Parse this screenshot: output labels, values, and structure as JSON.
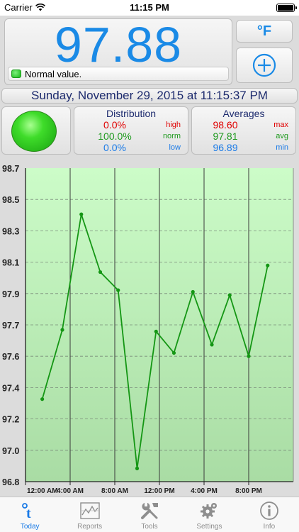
{
  "status_bar": {
    "carrier": "Carrier",
    "time": "11:15 PM"
  },
  "reading": {
    "value": "97.88",
    "status_text": "Normal value.",
    "unit_button": "°F"
  },
  "date_time": "Sunday, November 29, 2015 at 11:15:37 PM",
  "distribution": {
    "title": "Distribution",
    "rows": [
      {
        "value": "0.0%",
        "label": "high",
        "color": "#e00000"
      },
      {
        "value": "100.0%",
        "label": "norm",
        "color": "#1f9a1f"
      },
      {
        "value": "0.0%",
        "label": "low",
        "color": "#1a7ae6"
      }
    ]
  },
  "averages": {
    "title": "Averages",
    "rows": [
      {
        "value": "98.60",
        "label": "max",
        "color": "#e00000"
      },
      {
        "value": "97.81",
        "label": "avg",
        "color": "#1f9a1f"
      },
      {
        "value": "96.89",
        "label": "min",
        "color": "#1a7ae6"
      }
    ]
  },
  "chart_data": {
    "type": "line",
    "y_ticks": [
      "98.7",
      "98.5",
      "98.3",
      "98.1",
      "97.9",
      "97.7",
      "97.6",
      "97.4",
      "97.2",
      "97.0",
      "96.8"
    ],
    "ylim": [
      96.8,
      98.7
    ],
    "x_ticks": [
      {
        "label": "12:00 AM",
        "hour": 0
      },
      {
        "label": "4:00 AM",
        "hour": 4
      },
      {
        "label": "8:00 AM",
        "hour": 8
      },
      {
        "label": "12:00 PM",
        "hour": 12
      },
      {
        "label": "4:00 PM",
        "hour": 16
      },
      {
        "label": "8:00 PM",
        "hour": 20
      }
    ],
    "xlim": [
      0,
      24
    ],
    "series": [
      {
        "color": "#149614",
        "x": [
          1.5,
          3.3,
          5.0,
          6.7,
          8.3,
          10.0,
          11.7,
          13.3,
          15.0,
          16.7,
          18.3,
          20.0,
          21.7
        ],
        "y": [
          97.3,
          97.72,
          98.42,
          98.07,
          97.96,
          96.88,
          97.71,
          97.58,
          97.95,
          97.63,
          97.93,
          97.56,
          98.11
        ]
      }
    ],
    "grid": true
  },
  "tab_bar": {
    "tabs": [
      {
        "label": "Today",
        "icon": "temperature-t-icon",
        "active": true
      },
      {
        "label": "Reports",
        "icon": "chart-icon",
        "active": false
      },
      {
        "label": "Tools",
        "icon": "tools-icon",
        "active": false
      },
      {
        "label": "Settings",
        "icon": "gear-icon",
        "active": false
      },
      {
        "label": "Info",
        "icon": "info-icon",
        "active": false
      }
    ]
  }
}
